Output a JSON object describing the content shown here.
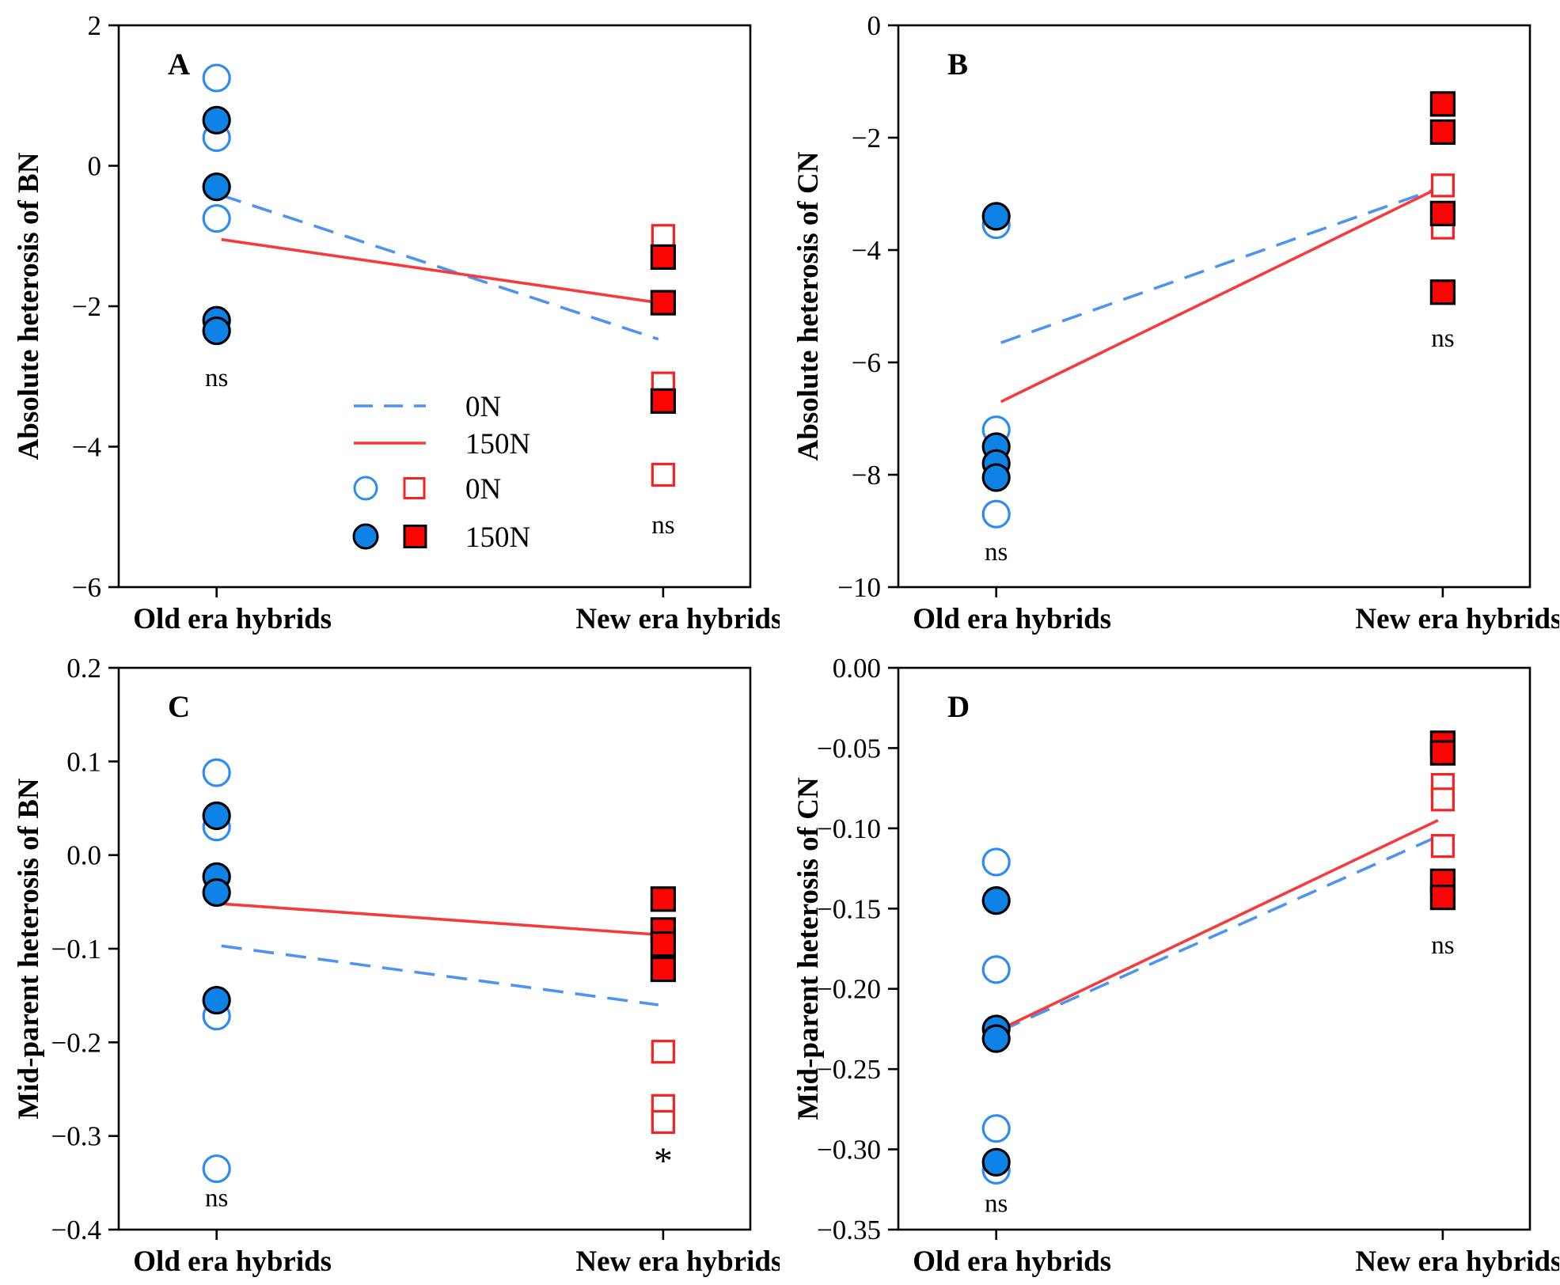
{
  "figure": {
    "categories": [
      "Old era hybrids",
      "New era hybrids"
    ],
    "colors": {
      "marker_blue": "#0f82e6",
      "open_blue": "#2e8cf0",
      "marker_red": "#fc0404",
      "open_red": "#f82222",
      "line_blue": "#4d94f2",
      "line_red": "#f53b3b",
      "axis_black": "#000000"
    },
    "legend": {
      "rows": [
        {
          "kind": "line",
          "style": "dashed",
          "color": "line_blue",
          "label": "0N"
        },
        {
          "kind": "line",
          "style": "solid",
          "color": "line_red",
          "label": "150N"
        },
        {
          "kind": "markers",
          "fill": "open",
          "label": "0N"
        },
        {
          "kind": "markers",
          "fill": "filled",
          "label": "150N"
        }
      ]
    }
  },
  "chart_data": [
    {
      "type": "scatter",
      "panel": "A",
      "ylabel": "Absolute heterosis of BN",
      "ylim": [
        -6,
        2
      ],
      "yticks": [
        {
          "v": 2,
          "label": "2"
        },
        {
          "v": 0,
          "label": "0"
        },
        {
          "v": -2,
          "label": "−2"
        },
        {
          "v": -4,
          "label": "−4"
        },
        {
          "v": -6,
          "label": "−6"
        }
      ],
      "categories": [
        "Old era hybrids",
        "New era hybrids"
      ],
      "series": [
        {
          "name": "Old era hybrids 0N",
          "category": 0,
          "marker": "circle",
          "fill": "open",
          "values": [
            1.25,
            0.4,
            -0.75
          ]
        },
        {
          "name": "Old era hybrids 150N",
          "category": 0,
          "marker": "circle",
          "fill": "filled",
          "values": [
            0.65,
            -0.3,
            -2.2,
            -2.35
          ]
        },
        {
          "name": "New era hybrids 0N",
          "category": 1,
          "marker": "square",
          "fill": "open",
          "values": [
            -1.0,
            -3.1,
            -4.4
          ]
        },
        {
          "name": "New era hybrids 150N",
          "category": 1,
          "marker": "square",
          "fill": "filled",
          "values": [
            -1.3,
            -1.95,
            -3.35
          ]
        }
      ],
      "trend_lines": [
        {
          "name": "0N",
          "style": "dashed",
          "color": "line_blue",
          "y_start": -0.42,
          "y_end": -2.47
        },
        {
          "name": "150N",
          "style": "solid",
          "color": "line_red",
          "y_start": -1.05,
          "y_end": -1.95
        }
      ],
      "annotations": [
        {
          "text": "ns",
          "category": 0,
          "v": -3.0
        },
        {
          "text": "ns",
          "category": 1,
          "v": -5.1
        }
      ],
      "show_legend": true
    },
    {
      "type": "scatter",
      "panel": "B",
      "ylabel": "Absolute heterosis of CN",
      "ylim": [
        -10,
        0
      ],
      "yticks": [
        {
          "v": 0,
          "label": "0"
        },
        {
          "v": -2,
          "label": "−2"
        },
        {
          "v": -4,
          "label": "−4"
        },
        {
          "v": -6,
          "label": "−6"
        },
        {
          "v": -8,
          "label": "−8"
        },
        {
          "v": -10,
          "label": "−10"
        }
      ],
      "categories": [
        "Old era hybrids",
        "New era hybrids"
      ],
      "series": [
        {
          "name": "Old era hybrids 0N",
          "category": 0,
          "marker": "circle",
          "fill": "open",
          "values": [
            -3.55,
            -7.2,
            -8.7
          ]
        },
        {
          "name": "Old era hybrids 150N",
          "category": 0,
          "marker": "circle",
          "fill": "filled",
          "values": [
            -3.4,
            -7.5,
            -7.8,
            -8.05
          ]
        },
        {
          "name": "New era hybrids 0N",
          "category": 1,
          "marker": "square",
          "fill": "open",
          "values": [
            -2.85,
            -3.6
          ]
        },
        {
          "name": "New era hybrids 150N",
          "category": 1,
          "marker": "square",
          "fill": "filled",
          "values": [
            -1.4,
            -1.9,
            -3.35,
            -4.75
          ]
        }
      ],
      "trend_lines": [
        {
          "name": "0N",
          "style": "dashed",
          "color": "line_blue",
          "y_start": -5.65,
          "y_end": -2.9
        },
        {
          "name": "150N",
          "style": "solid",
          "color": "line_red",
          "y_start": -6.7,
          "y_end": -2.9
        }
      ],
      "annotations": [
        {
          "text": "ns",
          "category": 0,
          "v": -9.35
        },
        {
          "text": "ns",
          "category": 1,
          "v": -5.55
        }
      ],
      "show_legend": false
    },
    {
      "type": "scatter",
      "panel": "C",
      "ylabel": "Mid-parent heterosis of BN",
      "ylim": [
        -0.4,
        0.2
      ],
      "yticks": [
        {
          "v": 0.2,
          "label": "0.2"
        },
        {
          "v": 0.1,
          "label": "0.1"
        },
        {
          "v": 0.0,
          "label": "0.0"
        },
        {
          "v": -0.1,
          "label": "−0.1"
        },
        {
          "v": -0.2,
          "label": "−0.2"
        },
        {
          "v": -0.3,
          "label": "−0.3"
        },
        {
          "v": -0.4,
          "label": "−0.4"
        }
      ],
      "categories": [
        "Old era hybrids",
        "New era hybrids"
      ],
      "series": [
        {
          "name": "Old era hybrids 0N",
          "category": 0,
          "marker": "circle",
          "fill": "open",
          "values": [
            0.088,
            0.03,
            -0.172,
            -0.335
          ]
        },
        {
          "name": "Old era hybrids 150N",
          "category": 0,
          "marker": "circle",
          "fill": "filled",
          "values": [
            0.042,
            -0.023,
            -0.04,
            -0.155
          ]
        },
        {
          "name": "New era hybrids 0N",
          "category": 1,
          "marker": "square",
          "fill": "open",
          "values": [
            -0.21,
            -0.268,
            -0.285
          ]
        },
        {
          "name": "New era hybrids 150N",
          "category": 1,
          "marker": "square",
          "fill": "filled",
          "values": [
            -0.047,
            -0.08,
            -0.095,
            -0.122
          ]
        }
      ],
      "trend_lines": [
        {
          "name": "0N",
          "style": "dashed",
          "color": "line_blue",
          "y_start": -0.097,
          "y_end": -0.16
        },
        {
          "name": "150N",
          "style": "solid",
          "color": "line_red",
          "y_start": -0.052,
          "y_end": -0.085
        }
      ],
      "annotations": [
        {
          "text": "ns",
          "category": 0,
          "v": -0.365
        },
        {
          "text": "*",
          "category": 1,
          "v": -0.318
        }
      ],
      "show_legend": false
    },
    {
      "type": "scatter",
      "panel": "D",
      "ylabel": "Mid-parent heterosis of CN",
      "ylim": [
        -0.35,
        0.0
      ],
      "yticks": [
        {
          "v": 0.0,
          "label": "0.00"
        },
        {
          "v": -0.05,
          "label": "−0.05"
        },
        {
          "v": -0.1,
          "label": "−0.10"
        },
        {
          "v": -0.15,
          "label": "−0.15"
        },
        {
          "v": -0.2,
          "label": "−0.20"
        },
        {
          "v": -0.25,
          "label": "−0.25"
        },
        {
          "v": -0.3,
          "label": "−0.30"
        },
        {
          "v": -0.35,
          "label": "−0.35"
        }
      ],
      "categories": [
        "Old era hybrids",
        "New era hybrids"
      ],
      "series": [
        {
          "name": "Old era hybrids 0N",
          "category": 0,
          "marker": "circle",
          "fill": "open",
          "values": [
            -0.121,
            -0.188,
            -0.287,
            -0.313
          ]
        },
        {
          "name": "Old era hybrids 150N",
          "category": 0,
          "marker": "circle",
          "fill": "filled",
          "values": [
            -0.145,
            -0.225,
            -0.231,
            -0.308
          ]
        },
        {
          "name": "New era hybrids 0N",
          "category": 1,
          "marker": "square",
          "fill": "open",
          "values": [
            -0.073,
            -0.082,
            -0.111
          ]
        },
        {
          "name": "New era hybrids 150N",
          "category": 1,
          "marker": "square",
          "fill": "filled",
          "values": [
            -0.047,
            -0.053,
            -0.133,
            -0.143
          ]
        }
      ],
      "trend_lines": [
        {
          "name": "0N",
          "style": "dashed",
          "color": "line_blue",
          "y_start": -0.226,
          "y_end": -0.105
        },
        {
          "name": "150N",
          "style": "solid",
          "color": "line_red",
          "y_start": -0.225,
          "y_end": -0.095
        }
      ],
      "annotations": [
        {
          "text": "ns",
          "category": 0,
          "v": -0.333
        },
        {
          "text": "ns",
          "category": 1,
          "v": -0.172
        }
      ],
      "show_legend": false
    }
  ]
}
